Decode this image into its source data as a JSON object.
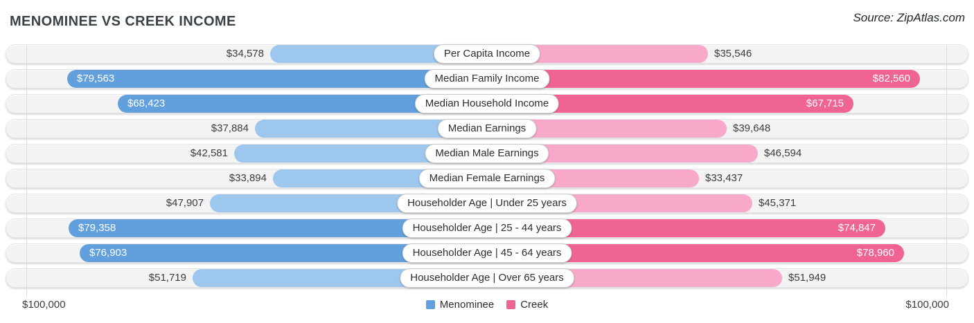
{
  "title": "MENOMINEE VS CREEK INCOME",
  "source": "Source: ZipAtlas.com",
  "axis": {
    "left_label": "$100,000",
    "right_label": "$100,000",
    "max": 100000
  },
  "legend": [
    {
      "label": "Menominee",
      "color_key": "mn_dark"
    },
    {
      "label": "Creek",
      "color_key": "ck_dark"
    }
  ],
  "colors": {
    "mn_dark": "#61a0dc",
    "mn_light": "#9ec7ed",
    "ck_dark": "#ef6493",
    "ck_light": "#f8a9c9",
    "track": "#f3f3f4"
  },
  "chart_data": {
    "type": "bar",
    "orientation": "horizontal-diverging",
    "xlim": [
      0,
      100000
    ],
    "legend_position": "bottom-center",
    "categories": [
      "Per Capita Income",
      "Median Family Income",
      "Median Household Income",
      "Median Earnings",
      "Median Male Earnings",
      "Median Female Earnings",
      "Householder Age | Under 25 years",
      "Householder Age | 25 - 44 years",
      "Householder Age | 45 - 64 years",
      "Householder Age | Over 65 years"
    ],
    "series": [
      {
        "name": "Menominee",
        "side": "left",
        "values": [
          34578,
          79563,
          68423,
          37884,
          42581,
          33894,
          47907,
          79358,
          76903,
          51719
        ]
      },
      {
        "name": "Creek",
        "side": "right",
        "values": [
          35546,
          82560,
          67715,
          39648,
          46594,
          33437,
          45371,
          74847,
          78960,
          51949
        ]
      }
    ],
    "rows": [
      {
        "label": "Per Capita Income",
        "menominee": {
          "value": 34578,
          "text": "$34,578"
        },
        "creek": {
          "value": 35546,
          "text": "$35,546"
        }
      },
      {
        "label": "Median Family Income",
        "menominee": {
          "value": 79563,
          "text": "$79,563"
        },
        "creek": {
          "value": 82560,
          "text": "$82,560"
        }
      },
      {
        "label": "Median Household Income",
        "menominee": {
          "value": 68423,
          "text": "$68,423"
        },
        "creek": {
          "value": 67715,
          "text": "$67,715"
        }
      },
      {
        "label": "Median Earnings",
        "menominee": {
          "value": 37884,
          "text": "$37,884"
        },
        "creek": {
          "value": 39648,
          "text": "$39,648"
        }
      },
      {
        "label": "Median Male Earnings",
        "menominee": {
          "value": 42581,
          "text": "$42,581"
        },
        "creek": {
          "value": 46594,
          "text": "$46,594"
        }
      },
      {
        "label": "Median Female Earnings",
        "menominee": {
          "value": 33894,
          "text": "$33,894"
        },
        "creek": {
          "value": 33437,
          "text": "$33,437"
        }
      },
      {
        "label": "Householder Age | Under 25 years",
        "menominee": {
          "value": 47907,
          "text": "$47,907"
        },
        "creek": {
          "value": 45371,
          "text": "$45,371"
        }
      },
      {
        "label": "Householder Age | 25 - 44 years",
        "menominee": {
          "value": 79358,
          "text": "$79,358"
        },
        "creek": {
          "value": 74847,
          "text": "$74,847"
        }
      },
      {
        "label": "Householder Age | 45 - 64 years",
        "menominee": {
          "value": 76903,
          "text": "$76,903"
        },
        "creek": {
          "value": 78960,
          "text": "$78,960"
        }
      },
      {
        "label": "Householder Age | Over 65 years",
        "menominee": {
          "value": 51719,
          "text": "$51,719"
        },
        "creek": {
          "value": 51949,
          "text": "$51,949"
        }
      }
    ]
  }
}
